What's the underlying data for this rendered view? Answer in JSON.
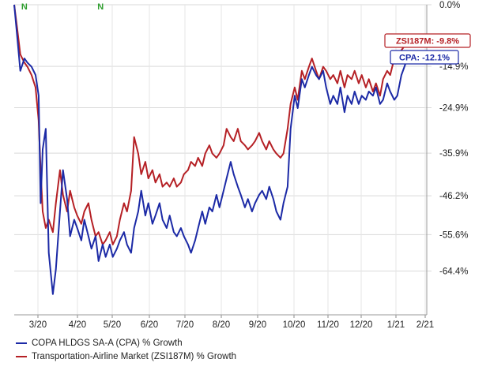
{
  "chart_data": {
    "type": "line",
    "title": "",
    "xlabel": "",
    "ylabel": "",
    "x_ticks": [
      "3/20",
      "4/20",
      "5/20",
      "6/20",
      "7/20",
      "8/20",
      "9/20",
      "10/20",
      "11/20",
      "12/20",
      "1/21",
      "2/21"
    ],
    "y_ticks": [
      "0.0%",
      "-14.9%",
      "-24.9%",
      "-35.9%",
      "-46.2%",
      "-55.6%",
      "-64.4%"
    ],
    "ylim": [
      -75,
      0
    ],
    "grid": true,
    "legend_position": "bottom-left",
    "event_markers": [
      {
        "label": "N",
        "x": "2020-02-10",
        "color": "#2e9e2e"
      },
      {
        "label": "N",
        "x": "2020-04-25",
        "color": "#2e9e2e"
      }
    ],
    "annotations": [
      {
        "text": "ZSI187M: -9.8%",
        "series": "Transportation-Airline Market (ZSI187M) % Growth",
        "y": -9.8,
        "color": "#b52025"
      },
      {
        "text": "CPA: -12.1%",
        "series": "COPA HLDGS SA-A (CPA) % Growth",
        "y": -12.1,
        "color": "#1c2aa6"
      }
    ],
    "series": [
      {
        "name": "COPA HLDGS SA-A (CPA) % Growth",
        "color": "#1c2aa6",
        "points": [
          [
            "2020-01-31",
            0
          ],
          [
            "2020-02-03",
            -8
          ],
          [
            "2020-02-06",
            -16
          ],
          [
            "2020-02-10",
            -13
          ],
          [
            "2020-02-13",
            -14
          ],
          [
            "2020-02-17",
            -15
          ],
          [
            "2020-02-21",
            -17
          ],
          [
            "2020-02-24",
            -22
          ],
          [
            "2020-02-26",
            -48
          ],
          [
            "2020-02-28",
            -35
          ],
          [
            "2020-03-02",
            -30
          ],
          [
            "2020-03-05",
            -60
          ],
          [
            "2020-03-09",
            -70
          ],
          [
            "2020-03-12",
            -64
          ],
          [
            "2020-03-16",
            -50
          ],
          [
            "2020-03-19",
            -40
          ],
          [
            "2020-03-23",
            -47
          ],
          [
            "2020-03-26",
            -56
          ],
          [
            "2020-03-30",
            -52
          ],
          [
            "2020-04-02",
            -54
          ],
          [
            "2020-04-06",
            -57
          ],
          [
            "2020-04-09",
            -52
          ],
          [
            "2020-04-13",
            -56
          ],
          [
            "2020-04-16",
            -59
          ],
          [
            "2020-04-20",
            -56
          ],
          [
            "2020-04-23",
            -62
          ],
          [
            "2020-04-27",
            -58
          ],
          [
            "2020-04-30",
            -61
          ],
          [
            "2020-05-04",
            -58
          ],
          [
            "2020-05-07",
            -61
          ],
          [
            "2020-05-11",
            -59
          ],
          [
            "2020-05-14",
            -57
          ],
          [
            "2020-05-18",
            -55
          ],
          [
            "2020-05-21",
            -58
          ],
          [
            "2020-05-25",
            -60
          ],
          [
            "2020-05-28",
            -54
          ],
          [
            "2020-06-01",
            -50
          ],
          [
            "2020-06-04",
            -45
          ],
          [
            "2020-06-08",
            -51
          ],
          [
            "2020-06-11",
            -48
          ],
          [
            "2020-06-15",
            -53
          ],
          [
            "2020-06-18",
            -51
          ],
          [
            "2020-06-22",
            -48
          ],
          [
            "2020-06-25",
            -52
          ],
          [
            "2020-06-29",
            -54
          ],
          [
            "2020-07-02",
            -51
          ],
          [
            "2020-07-06",
            -55
          ],
          [
            "2020-07-09",
            -56
          ],
          [
            "2020-07-13",
            -54
          ],
          [
            "2020-07-16",
            -56
          ],
          [
            "2020-07-20",
            -58
          ],
          [
            "2020-07-23",
            -60
          ],
          [
            "2020-07-27",
            -57
          ],
          [
            "2020-07-30",
            -54
          ],
          [
            "2020-08-03",
            -50
          ],
          [
            "2020-08-06",
            -53
          ],
          [
            "2020-08-10",
            -49
          ],
          [
            "2020-08-13",
            -50
          ],
          [
            "2020-08-17",
            -46
          ],
          [
            "2020-08-20",
            -49
          ],
          [
            "2020-08-24",
            -45
          ],
          [
            "2020-08-27",
            -42
          ],
          [
            "2020-08-31",
            -38
          ],
          [
            "2020-09-03",
            -41
          ],
          [
            "2020-09-07",
            -44
          ],
          [
            "2020-09-10",
            -46
          ],
          [
            "2020-09-14",
            -49
          ],
          [
            "2020-09-17",
            -47
          ],
          [
            "2020-09-21",
            -50
          ],
          [
            "2020-09-24",
            -48
          ],
          [
            "2020-09-28",
            -46
          ],
          [
            "2020-10-01",
            -45
          ],
          [
            "2020-10-05",
            -47
          ],
          [
            "2020-10-08",
            -44
          ],
          [
            "2020-10-12",
            -47
          ],
          [
            "2020-10-15",
            -50
          ],
          [
            "2020-10-19",
            -52
          ],
          [
            "2020-10-22",
            -48
          ],
          [
            "2020-10-26",
            -44
          ],
          [
            "2020-10-29",
            -30
          ],
          [
            "2020-11-02",
            -22
          ],
          [
            "2020-11-05",
            -25
          ],
          [
            "2020-11-09",
            -18
          ],
          [
            "2020-11-12",
            -20
          ],
          [
            "2020-11-16",
            -17
          ],
          [
            "2020-11-19",
            -15
          ],
          [
            "2020-11-23",
            -17
          ],
          [
            "2020-11-26",
            -18
          ],
          [
            "2020-11-30",
            -16
          ],
          [
            "2020-12-03",
            -20
          ],
          [
            "2020-12-07",
            -24
          ],
          [
            "2020-12-10",
            -22
          ],
          [
            "2020-12-14",
            -24
          ],
          [
            "2020-12-17",
            -20
          ],
          [
            "2020-12-21",
            -26
          ],
          [
            "2020-12-24",
            -22
          ],
          [
            "2020-12-28",
            -24
          ],
          [
            "2020-12-31",
            -21
          ],
          [
            "2021-01-04",
            -24
          ],
          [
            "2021-01-07",
            -22
          ],
          [
            "2021-01-11",
            -23
          ],
          [
            "2021-01-14",
            -21
          ],
          [
            "2021-01-18",
            -22
          ],
          [
            "2021-01-21",
            -20
          ],
          [
            "2021-01-25",
            -24
          ],
          [
            "2021-01-28",
            -23
          ],
          [
            "2021-02-01",
            -19
          ],
          [
            "2021-02-04",
            -21
          ],
          [
            "2021-02-08",
            -23
          ],
          [
            "2021-02-11",
            -22
          ],
          [
            "2021-02-15",
            -17
          ],
          [
            "2021-02-18",
            -15
          ],
          [
            "2021-02-22",
            -12.1
          ]
        ]
      },
      {
        "name": "Transportation-Airline Market (ZSI187M) % Growth",
        "color": "#b52025",
        "points": [
          [
            "2020-01-31",
            0
          ],
          [
            "2020-02-03",
            -6
          ],
          [
            "2020-02-06",
            -12
          ],
          [
            "2020-02-10",
            -14
          ],
          [
            "2020-02-13",
            -15
          ],
          [
            "2020-02-17",
            -17
          ],
          [
            "2020-02-21",
            -20
          ],
          [
            "2020-02-24",
            -28
          ],
          [
            "2020-02-26",
            -40
          ],
          [
            "2020-02-28",
            -50
          ],
          [
            "2020-03-02",
            -54
          ],
          [
            "2020-03-05",
            -52
          ],
          [
            "2020-03-09",
            -55
          ],
          [
            "2020-03-12",
            -48
          ],
          [
            "2020-03-16",
            -40
          ],
          [
            "2020-03-19",
            -46
          ],
          [
            "2020-03-23",
            -50
          ],
          [
            "2020-03-26",
            -45
          ],
          [
            "2020-03-30",
            -49
          ],
          [
            "2020-04-02",
            -51
          ],
          [
            "2020-04-06",
            -53
          ],
          [
            "2020-04-09",
            -50
          ],
          [
            "2020-04-13",
            -48
          ],
          [
            "2020-04-16",
            -52
          ],
          [
            "2020-04-20",
            -56
          ],
          [
            "2020-04-23",
            -55
          ],
          [
            "2020-04-27",
            -58
          ],
          [
            "2020-04-30",
            -57
          ],
          [
            "2020-05-04",
            -55
          ],
          [
            "2020-05-07",
            -58
          ],
          [
            "2020-05-11",
            -56
          ],
          [
            "2020-05-14",
            -52
          ],
          [
            "2020-05-18",
            -48
          ],
          [
            "2020-05-21",
            -50
          ],
          [
            "2020-05-25",
            -45
          ],
          [
            "2020-05-28",
            -32
          ],
          [
            "2020-06-01",
            -36
          ],
          [
            "2020-06-04",
            -41
          ],
          [
            "2020-06-08",
            -38
          ],
          [
            "2020-06-11",
            -42
          ],
          [
            "2020-06-15",
            -40
          ],
          [
            "2020-06-18",
            -43
          ],
          [
            "2020-06-22",
            -41
          ],
          [
            "2020-06-25",
            -44
          ],
          [
            "2020-06-29",
            -43
          ],
          [
            "2020-07-02",
            -44
          ],
          [
            "2020-07-06",
            -42
          ],
          [
            "2020-07-09",
            -44
          ],
          [
            "2020-07-13",
            -43
          ],
          [
            "2020-07-16",
            -41
          ],
          [
            "2020-07-20",
            -40
          ],
          [
            "2020-07-23",
            -38
          ],
          [
            "2020-07-27",
            -39
          ],
          [
            "2020-07-30",
            -37
          ],
          [
            "2020-08-03",
            -39
          ],
          [
            "2020-08-06",
            -36
          ],
          [
            "2020-08-10",
            -34
          ],
          [
            "2020-08-13",
            -36
          ],
          [
            "2020-08-17",
            -37
          ],
          [
            "2020-08-20",
            -36
          ],
          [
            "2020-08-24",
            -34
          ],
          [
            "2020-08-27",
            -30
          ],
          [
            "2020-08-31",
            -32
          ],
          [
            "2020-09-03",
            -33
          ],
          [
            "2020-09-07",
            -30
          ],
          [
            "2020-09-10",
            -33
          ],
          [
            "2020-09-14",
            -34
          ],
          [
            "2020-09-17",
            -35
          ],
          [
            "2020-09-21",
            -34
          ],
          [
            "2020-09-24",
            -33
          ],
          [
            "2020-09-28",
            -31
          ],
          [
            "2020-10-01",
            -33
          ],
          [
            "2020-10-05",
            -35
          ],
          [
            "2020-10-08",
            -33
          ],
          [
            "2020-10-12",
            -35
          ],
          [
            "2020-10-15",
            -36
          ],
          [
            "2020-10-19",
            -37
          ],
          [
            "2020-10-22",
            -36
          ],
          [
            "2020-10-26",
            -30
          ],
          [
            "2020-10-29",
            -24
          ],
          [
            "2020-11-02",
            -20
          ],
          [
            "2020-11-05",
            -23
          ],
          [
            "2020-11-09",
            -16
          ],
          [
            "2020-11-12",
            -18
          ],
          [
            "2020-11-16",
            -15
          ],
          [
            "2020-11-19",
            -13
          ],
          [
            "2020-11-23",
            -16
          ],
          [
            "2020-11-26",
            -18
          ],
          [
            "2020-11-30",
            -15
          ],
          [
            "2020-12-03",
            -16
          ],
          [
            "2020-12-07",
            -18
          ],
          [
            "2020-12-10",
            -17
          ],
          [
            "2020-12-14",
            -19
          ],
          [
            "2020-12-17",
            -16
          ],
          [
            "2020-12-21",
            -20
          ],
          [
            "2020-12-24",
            -17
          ],
          [
            "2020-12-28",
            -18
          ],
          [
            "2020-12-31",
            -16
          ],
          [
            "2021-01-04",
            -19
          ],
          [
            "2021-01-07",
            -17
          ],
          [
            "2021-01-11",
            -20
          ],
          [
            "2021-01-14",
            -18
          ],
          [
            "2021-01-18",
            -21
          ],
          [
            "2021-01-21",
            -19
          ],
          [
            "2021-01-25",
            -22
          ],
          [
            "2021-01-28",
            -18
          ],
          [
            "2021-02-01",
            -16
          ],
          [
            "2021-02-04",
            -17
          ],
          [
            "2021-02-08",
            -13
          ],
          [
            "2021-02-11",
            -14
          ],
          [
            "2021-02-15",
            -11
          ],
          [
            "2021-02-18",
            -10
          ],
          [
            "2021-02-22",
            -9.8
          ]
        ]
      }
    ]
  }
}
